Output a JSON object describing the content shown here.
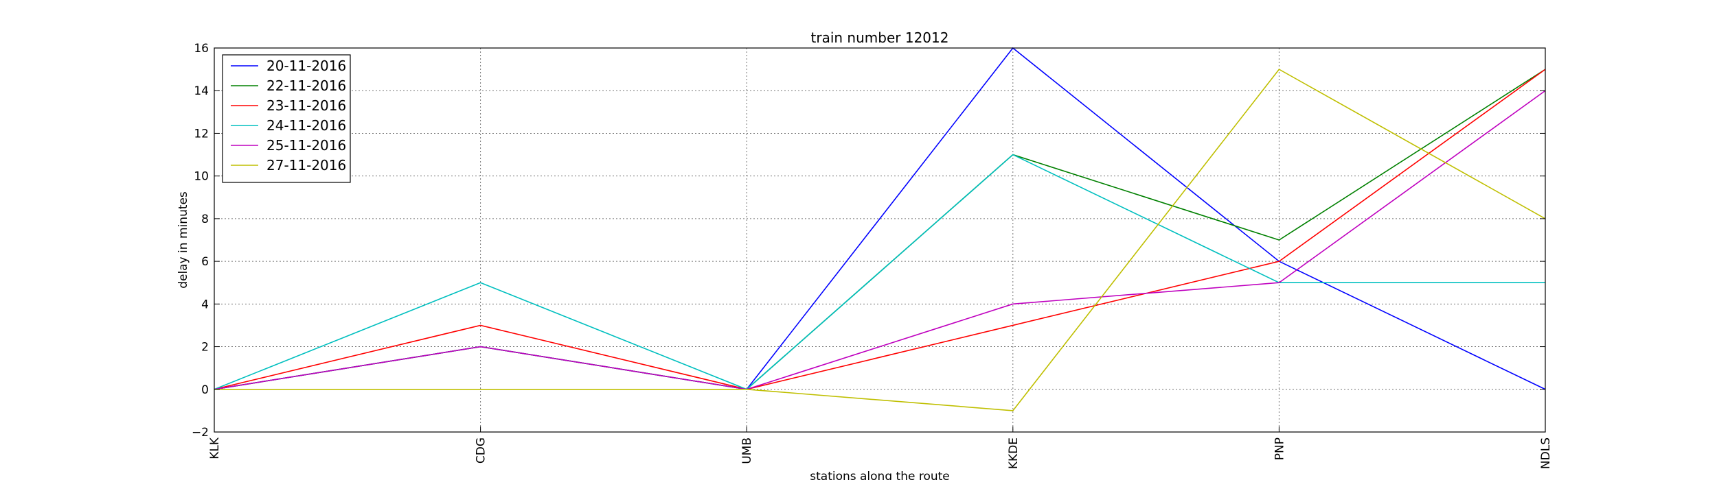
{
  "chart_data": {
    "type": "line",
    "title": "train number 12012",
    "xlabel": "stations along the route",
    "ylabel": "delay in minutes",
    "categories": [
      "KLK",
      "CDG",
      "UMB",
      "KKDE",
      "PNP",
      "NDLS"
    ],
    "ylim": [
      -2,
      16
    ],
    "yticks": [
      "−2",
      "0",
      "2",
      "4",
      "6",
      "8",
      "10",
      "12",
      "14",
      "16"
    ],
    "grid": true,
    "legend_position": "top-left",
    "series": [
      {
        "name": "20-11-2016",
        "color": "#0000ff",
        "values": [
          0,
          2,
          0,
          16,
          6,
          0
        ]
      },
      {
        "name": "22-11-2016",
        "color": "#008000",
        "values": [
          0,
          2,
          0,
          11,
          7,
          15
        ]
      },
      {
        "name": "23-11-2016",
        "color": "#ff0000",
        "values": [
          0,
          3,
          0,
          3,
          6,
          15
        ]
      },
      {
        "name": "24-11-2016",
        "color": "#00bfbf",
        "values": [
          0,
          5,
          0,
          11,
          5,
          5
        ]
      },
      {
        "name": "25-11-2016",
        "color": "#bf00bf",
        "values": [
          0,
          2,
          0,
          4,
          5,
          14
        ]
      },
      {
        "name": "27-11-2016",
        "color": "#bfbf00",
        "values": [
          0,
          0,
          0,
          -1,
          15,
          8
        ]
      }
    ]
  }
}
